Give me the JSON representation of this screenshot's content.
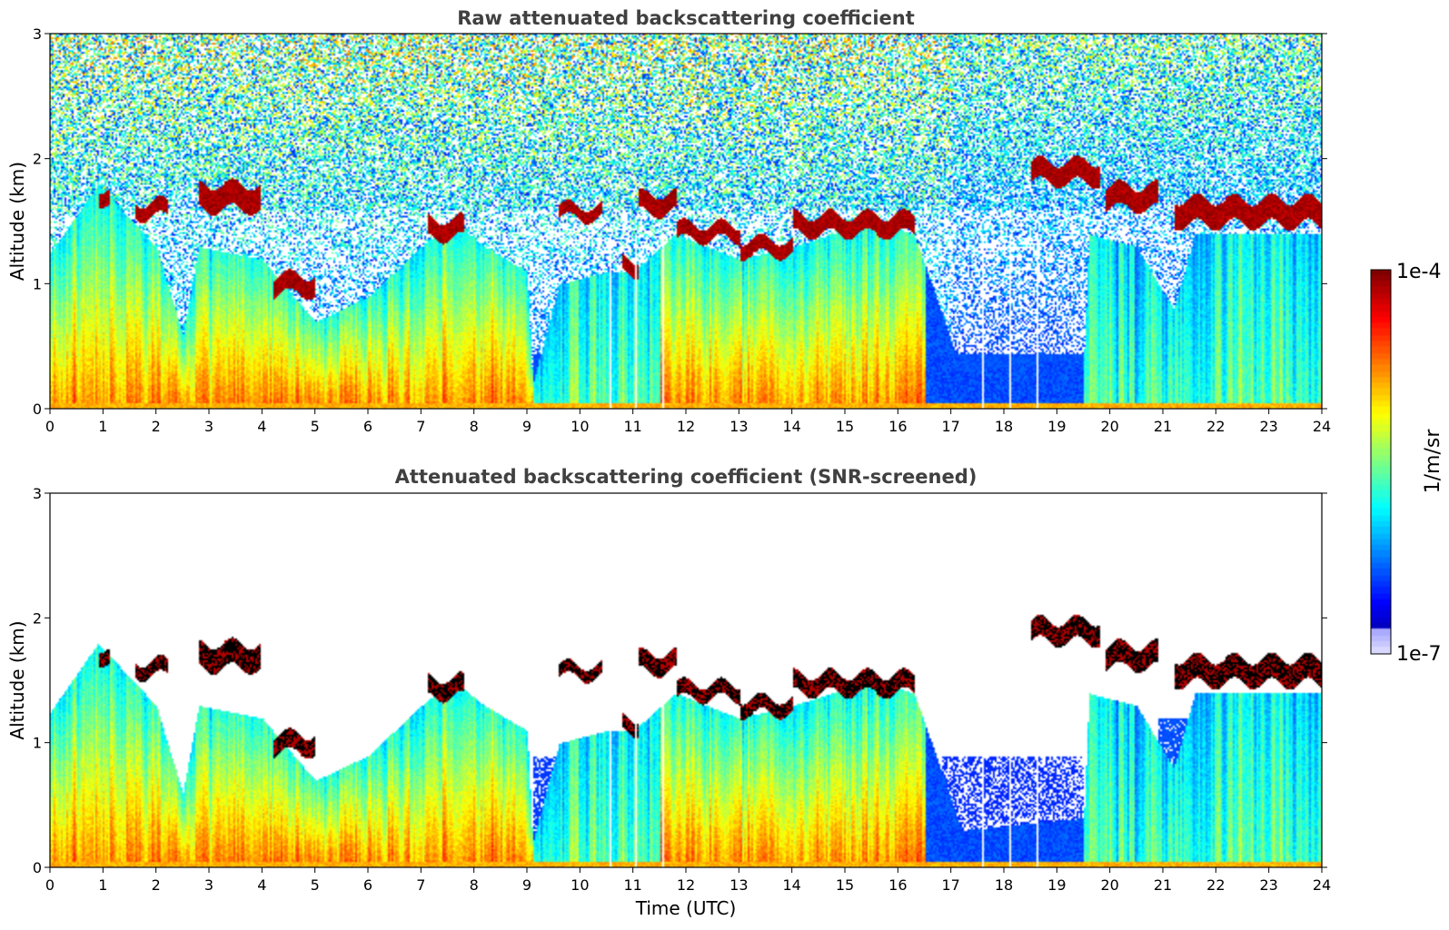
{
  "chart_data": [
    {
      "type": "heatmap",
      "title": "Raw attenuated backscattering coefficient",
      "xlabel": "",
      "ylabel": "Altitude (km)",
      "xlim": [
        0,
        24
      ],
      "ylim": [
        0,
        3
      ],
      "x_ticks": [
        "0",
        "1",
        "2",
        "3",
        "4",
        "5",
        "6",
        "7",
        "8",
        "9",
        "10",
        "11",
        "12",
        "13",
        "14",
        "15",
        "16",
        "17",
        "18",
        "19",
        "20",
        "21",
        "22",
        "23",
        "24"
      ],
      "y_ticks": [
        "0",
        "1",
        "2",
        "3"
      ],
      "screened": false
    },
    {
      "type": "heatmap",
      "title": "Attenuated backscattering coefficient (SNR-screened)",
      "xlabel": "Time (UTC)",
      "ylabel": "Altitude (km)",
      "xlim": [
        0,
        24
      ],
      "ylim": [
        0,
        3
      ],
      "x_ticks": [
        "0",
        "1",
        "2",
        "3",
        "4",
        "5",
        "6",
        "7",
        "8",
        "9",
        "10",
        "11",
        "12",
        "13",
        "14",
        "15",
        "16",
        "17",
        "18",
        "19",
        "20",
        "21",
        "22",
        "23",
        "24"
      ],
      "y_ticks": [
        "0",
        "1",
        "2",
        "3"
      ],
      "screened": true
    }
  ],
  "colorbar": {
    "label": "1/m/sr",
    "max_label": "1e-4",
    "min_label": "1e-7",
    "scale": "log",
    "colormap": "jet"
  },
  "features": {
    "layer_top_km": [
      [
        0,
        1.25
      ],
      [
        0.9,
        1.8
      ],
      [
        2.0,
        1.3
      ],
      [
        2.5,
        0.6
      ],
      [
        2.8,
        1.3
      ],
      [
        4.0,
        1.2
      ],
      [
        5.0,
        0.7
      ],
      [
        6.0,
        0.9
      ],
      [
        7.0,
        1.3
      ],
      [
        7.6,
        1.5
      ],
      [
        8.2,
        1.3
      ],
      [
        9.0,
        1.1
      ],
      [
        9.1,
        0.2
      ],
      [
        9.6,
        1.0
      ],
      [
        10.5,
        1.1
      ],
      [
        11.0,
        1.1
      ],
      [
        11.8,
        1.4
      ],
      [
        13.0,
        1.2
      ],
      [
        14.0,
        1.3
      ],
      [
        15.5,
        1.5
      ],
      [
        16.3,
        1.4
      ],
      [
        16.8,
        0.8
      ],
      [
        17.2,
        0.3
      ],
      [
        19.5,
        0.4
      ],
      [
        19.6,
        1.4
      ],
      [
        20.5,
        1.3
      ],
      [
        21.2,
        0.8
      ],
      [
        21.6,
        1.4
      ],
      [
        24,
        1.4
      ]
    ],
    "cloud_layers": [
      {
        "x0": 0.9,
        "x1": 1.1,
        "alt": 1.72,
        "t": 0.12
      },
      {
        "x0": 1.6,
        "x1": 2.2,
        "alt": 1.6,
        "t": 0.12
      },
      {
        "x0": 2.8,
        "x1": 3.95,
        "alt": 1.7,
        "t": 0.2
      },
      {
        "x0": 4.2,
        "x1": 5.0,
        "alt": 1.0,
        "t": 0.15
      },
      {
        "x0": 7.1,
        "x1": 7.8,
        "alt": 1.45,
        "t": 0.15
      },
      {
        "x0": 9.6,
        "x1": 10.4,
        "alt": 1.58,
        "t": 0.1
      },
      {
        "x0": 10.8,
        "x1": 11.1,
        "alt": 1.15,
        "t": 0.12
      },
      {
        "x0": 11.1,
        "x1": 11.8,
        "alt": 1.65,
        "t": 0.15
      },
      {
        "x0": 11.8,
        "x1": 13.0,
        "alt": 1.42,
        "t": 0.12
      },
      {
        "x0": 13.0,
        "x1": 14.0,
        "alt": 1.3,
        "t": 0.12
      },
      {
        "x0": 14.0,
        "x1": 16.3,
        "alt": 1.48,
        "t": 0.15
      },
      {
        "x0": 18.5,
        "x1": 19.8,
        "alt": 1.9,
        "t": 0.17
      },
      {
        "x0": 19.9,
        "x1": 20.9,
        "alt": 1.7,
        "t": 0.18
      },
      {
        "x0": 21.2,
        "x1": 24.0,
        "alt": 1.58,
        "t": 0.2
      }
    ],
    "white_gap_lines_h": [
      10.55,
      11.05,
      11.55,
      17.6,
      18.1,
      18.6
    ]
  }
}
